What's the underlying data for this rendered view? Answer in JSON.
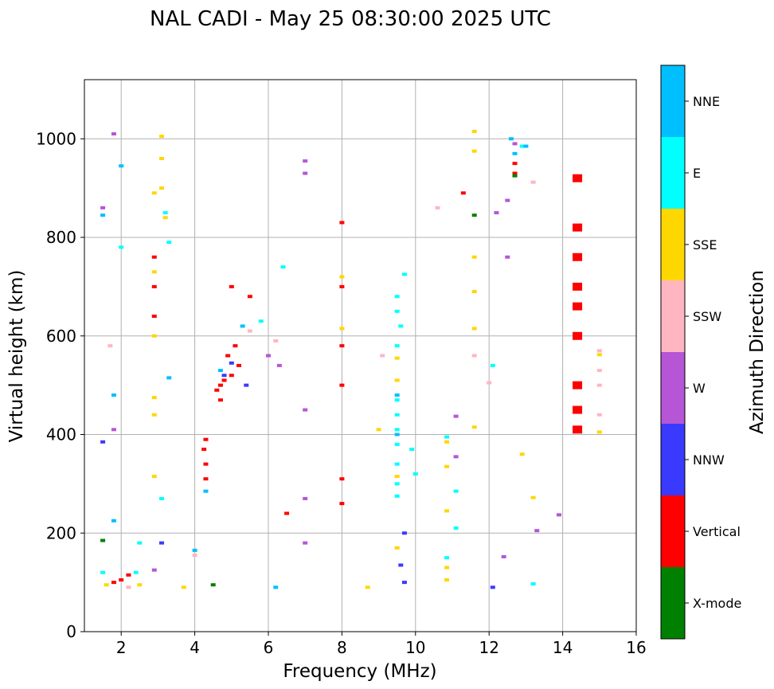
{
  "chart_data": {
    "type": "scatter",
    "title": "NAL CADI - May 25 08:30:00 2025 UTC",
    "xlabel": "Frequency (MHz)",
    "ylabel": "Virtual height (km)",
    "xlim": [
      1,
      16
    ],
    "ylim": [
      0,
      1120
    ],
    "x_ticks": [
      "2",
      "4",
      "6",
      "8",
      "10",
      "12",
      "14",
      "16"
    ],
    "y_ticks": [
      "0",
      "200",
      "400",
      "600",
      "800",
      "1000"
    ],
    "grid": true,
    "colorbar": {
      "label": "Azimuth Direction",
      "categories": [
        {
          "name": "X-mode",
          "color": "#008000"
        },
        {
          "name": "Vertical",
          "color": "#ff0000"
        },
        {
          "name": "NNW",
          "color": "#3a3aff"
        },
        {
          "name": "W",
          "color": "#b656d6"
        },
        {
          "name": "SSW",
          "color": "#ffb6c1"
        },
        {
          "name": "SSE",
          "color": "#ffd700"
        },
        {
          "name": "E",
          "color": "#00ffff"
        },
        {
          "name": "NNE",
          "color": "#00bfff"
        }
      ]
    },
    "series": [
      {
        "name": "Vertical",
        "points": [
          [
            4.7,
            500
          ],
          [
            4.6,
            490
          ],
          [
            4.8,
            510
          ],
          [
            5.0,
            520
          ],
          [
            4.9,
            560
          ],
          [
            5.2,
            540
          ],
          [
            5.1,
            580
          ],
          [
            4.7,
            470
          ],
          [
            4.3,
            340
          ],
          [
            4.3,
            310
          ],
          [
            4.25,
            370
          ],
          [
            4.3,
            390
          ],
          [
            2.9,
            760
          ],
          [
            2.9,
            700
          ],
          [
            2.9,
            640
          ],
          [
            8.0,
            830
          ],
          [
            8.0,
            700
          ],
          [
            8.0,
            580
          ],
          [
            8.0,
            500
          ],
          [
            8.0,
            310
          ],
          [
            8.0,
            260
          ],
          [
            14.4,
            920
          ],
          [
            14.4,
            820
          ],
          [
            14.4,
            760
          ],
          [
            14.4,
            700
          ],
          [
            14.4,
            660
          ],
          [
            14.4,
            600
          ],
          [
            14.4,
            500
          ],
          [
            14.4,
            450
          ],
          [
            14.4,
            410
          ],
          [
            12.7,
            950
          ],
          [
            12.7,
            930
          ],
          [
            2.0,
            105
          ],
          [
            2.2,
            115
          ],
          [
            1.8,
            100
          ],
          [
            11.3,
            890
          ],
          [
            6.5,
            240
          ],
          [
            5.0,
            700
          ],
          [
            5.5,
            680
          ]
        ]
      },
      {
        "name": "X-mode",
        "points": [
          [
            11.6,
            845
          ],
          [
            12.7,
            925
          ],
          [
            1.5,
            185
          ],
          [
            4.5,
            95
          ]
        ]
      },
      {
        "name": "NNW",
        "points": [
          [
            4.8,
            520
          ],
          [
            5.0,
            545
          ],
          [
            1.5,
            385
          ],
          [
            9.7,
            100
          ],
          [
            9.6,
            135
          ],
          [
            9.7,
            200
          ],
          [
            12.1,
            90
          ],
          [
            5.4,
            500
          ],
          [
            3.1,
            180
          ]
        ]
      },
      {
        "name": "W",
        "points": [
          [
            1.8,
            1010
          ],
          [
            7.0,
            955
          ],
          [
            7.0,
            930
          ],
          [
            7.0,
            450
          ],
          [
            7.0,
            270
          ],
          [
            7.0,
            180
          ],
          [
            12.5,
            875
          ],
          [
            12.2,
            850
          ],
          [
            12.5,
            760
          ],
          [
            12.7,
            990
          ],
          [
            13.3,
            205
          ],
          [
            13.9,
            237
          ],
          [
            12.4,
            152
          ],
          [
            11.1,
            437
          ],
          [
            11.1,
            355
          ],
          [
            6.0,
            560
          ],
          [
            6.3,
            540
          ],
          [
            1.5,
            860
          ],
          [
            1.8,
            410
          ],
          [
            2.9,
            125
          ]
        ]
      },
      {
        "name": "SSW",
        "points": [
          [
            15.0,
            570
          ],
          [
            15.0,
            530
          ],
          [
            15.0,
            500
          ],
          [
            15.0,
            440
          ],
          [
            6.2,
            590
          ],
          [
            5.5,
            610
          ],
          [
            1.7,
            580
          ],
          [
            10.6,
            860
          ],
          [
            11.6,
            560
          ],
          [
            12.0,
            505
          ],
          [
            9.1,
            560
          ],
          [
            13.2,
            912
          ],
          [
            4.0,
            155
          ],
          [
            2.2,
            90
          ]
        ]
      },
      {
        "name": "SSE",
        "points": [
          [
            3.1,
            1005
          ],
          [
            3.1,
            960
          ],
          [
            3.1,
            900
          ],
          [
            3.2,
            840
          ],
          [
            2.9,
            890
          ],
          [
            2.9,
            730
          ],
          [
            2.9,
            600
          ],
          [
            2.9,
            475
          ],
          [
            2.9,
            440
          ],
          [
            2.9,
            315
          ],
          [
            11.6,
            1015
          ],
          [
            11.6,
            975
          ],
          [
            11.6,
            760
          ],
          [
            11.6,
            690
          ],
          [
            11.6,
            615
          ],
          [
            11.6,
            415
          ],
          [
            15.0,
            405
          ],
          [
            15.0,
            562
          ],
          [
            9.5,
            555
          ],
          [
            9.5,
            510
          ],
          [
            9.5,
            315
          ],
          [
            9.5,
            170
          ],
          [
            10.85,
            385
          ],
          [
            10.85,
            335
          ],
          [
            10.85,
            245
          ],
          [
            10.85,
            130
          ],
          [
            10.85,
            105
          ],
          [
            12.9,
            360
          ],
          [
            13.2,
            272
          ],
          [
            8.0,
            720
          ],
          [
            8.0,
            615
          ],
          [
            2.5,
            95
          ],
          [
            1.6,
            95
          ],
          [
            8.7,
            90
          ],
          [
            9.0,
            410
          ],
          [
            3.7,
            90
          ]
        ]
      },
      {
        "name": "E",
        "points": [
          [
            9.5,
            680
          ],
          [
            9.5,
            650
          ],
          [
            9.6,
            620
          ],
          [
            9.5,
            580
          ],
          [
            9.5,
            470
          ],
          [
            9.5,
            440
          ],
          [
            9.5,
            410
          ],
          [
            9.5,
            380
          ],
          [
            9.5,
            340
          ],
          [
            9.5,
            300
          ],
          [
            9.5,
            275
          ],
          [
            9.7,
            725
          ],
          [
            10.85,
            395
          ],
          [
            10.85,
            150
          ],
          [
            11.1,
            285
          ],
          [
            11.1,
            210
          ],
          [
            3.3,
            790
          ],
          [
            3.2,
            850
          ],
          [
            2.5,
            180
          ],
          [
            2.4,
            120
          ],
          [
            1.5,
            120
          ],
          [
            3.1,
            270
          ],
          [
            12.1,
            540
          ],
          [
            12.9,
            985
          ],
          [
            13.2,
            97
          ],
          [
            6.4,
            740
          ],
          [
            5.8,
            630
          ],
          [
            10.0,
            320
          ],
          [
            2.0,
            780
          ],
          [
            9.9,
            370
          ]
        ]
      },
      {
        "name": "NNE",
        "points": [
          [
            12.7,
            970
          ],
          [
            13.0,
            985
          ],
          [
            1.5,
            845
          ],
          [
            2.0,
            945
          ],
          [
            1.8,
            480
          ],
          [
            1.8,
            225
          ],
          [
            9.5,
            480
          ],
          [
            9.5,
            400
          ],
          [
            4.3,
            285
          ],
          [
            4.7,
            530
          ],
          [
            5.3,
            620
          ],
          [
            4.0,
            165
          ],
          [
            6.2,
            90
          ],
          [
            3.3,
            515
          ],
          [
            12.6,
            1000
          ]
        ]
      }
    ]
  }
}
